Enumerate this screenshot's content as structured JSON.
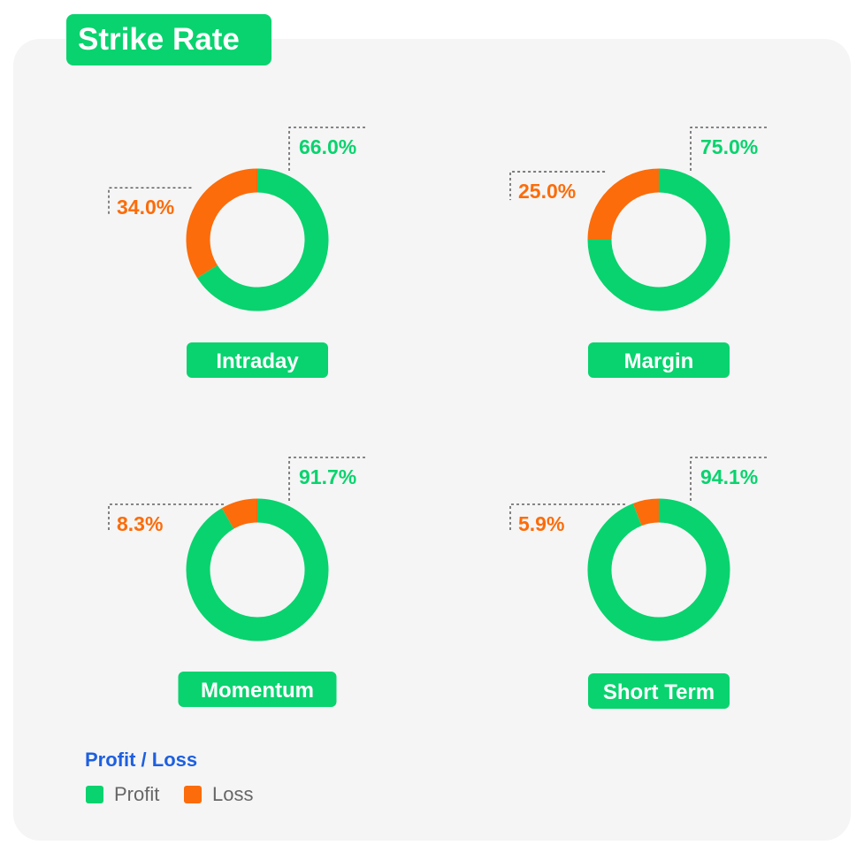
{
  "page_title": "Strike Rate",
  "colors": {
    "profit": "#09d36e",
    "loss": "#fc6c0a",
    "legend_title": "#1d5fe0"
  },
  "legend": {
    "title": "Profit / Loss",
    "items": [
      {
        "label": "Profit",
        "color": "#09d36e"
      },
      {
        "label": "Loss",
        "color": "#fc6c0a"
      }
    ]
  },
  "chart_data": [
    {
      "type": "pie",
      "name": "Intraday",
      "slices": [
        {
          "label": "Profit",
          "value": 66.0,
          "text": "66.0%",
          "color": "#09d36e"
        },
        {
          "label": "Loss",
          "value": 34.0,
          "text": "34.0%",
          "color": "#fc6c0a"
        }
      ]
    },
    {
      "type": "pie",
      "name": "Margin",
      "slices": [
        {
          "label": "Profit",
          "value": 75.0,
          "text": "75.0%",
          "color": "#09d36e"
        },
        {
          "label": "Loss",
          "value": 25.0,
          "text": "25.0%",
          "color": "#fc6c0a"
        }
      ]
    },
    {
      "type": "pie",
      "name": "Momentum",
      "slices": [
        {
          "label": "Profit",
          "value": 91.7,
          "text": "91.7%",
          "color": "#09d36e"
        },
        {
          "label": "Loss",
          "value": 8.3,
          "text": "8.3%",
          "color": "#fc6c0a"
        }
      ]
    },
    {
      "type": "pie",
      "name": "Short Term",
      "slices": [
        {
          "label": "Profit",
          "value": 94.1,
          "text": "94.1%",
          "color": "#09d36e"
        },
        {
          "label": "Loss",
          "value": 5.9,
          "text": "5.9%",
          "color": "#fc6c0a"
        }
      ]
    }
  ]
}
